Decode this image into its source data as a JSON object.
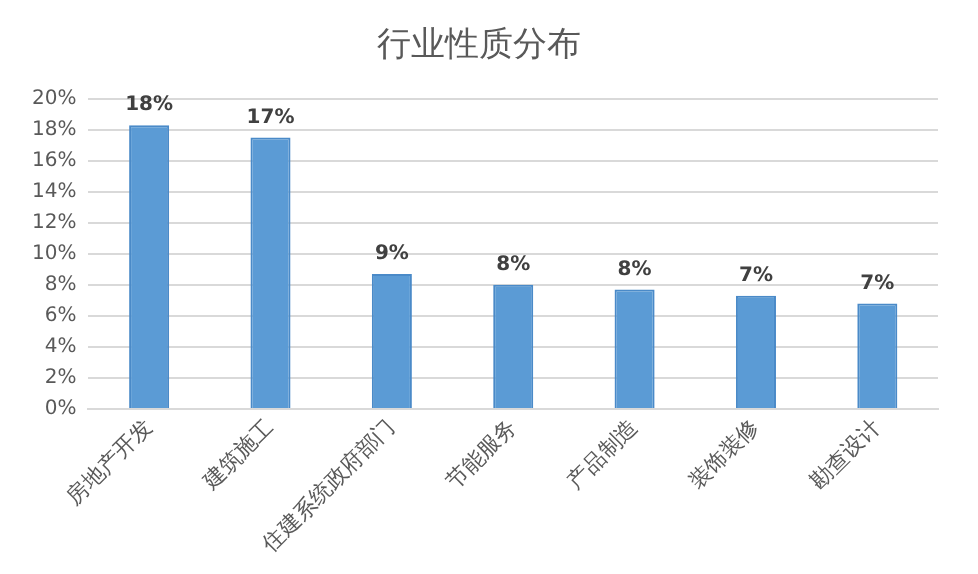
{
  "chart_data": {
    "type": "bar",
    "title": "行业性质分布",
    "categories": [
      "房地产开发",
      "建筑施工",
      "住建系统政府部门",
      "节能服务",
      "产品制造",
      "装饰装修",
      "勘查设计"
    ],
    "values": [
      18.3,
      17.5,
      8.7,
      8.0,
      7.7,
      7.3,
      6.8
    ],
    "value_labels": [
      "18%",
      "17%",
      "9%",
      "8%",
      "8%",
      "7%",
      "7%"
    ],
    "color": "#5b9bd5",
    "ylim": [
      0,
      20
    ],
    "yticks": [
      {
        "value": 0,
        "label": "0%"
      },
      {
        "value": 2,
        "label": "2%"
      },
      {
        "value": 4,
        "label": "4%"
      },
      {
        "value": 6,
        "label": "6%"
      },
      {
        "value": 8,
        "label": "8%"
      },
      {
        "value": 10,
        "label": "10%"
      },
      {
        "value": 12,
        "label": "12%"
      },
      {
        "value": 14,
        "label": "14%"
      },
      {
        "value": 16,
        "label": "16%"
      },
      {
        "value": 18,
        "label": "18%"
      },
      {
        "value": 20,
        "label": "20%"
      }
    ],
    "grid": "y",
    "legend": false
  }
}
